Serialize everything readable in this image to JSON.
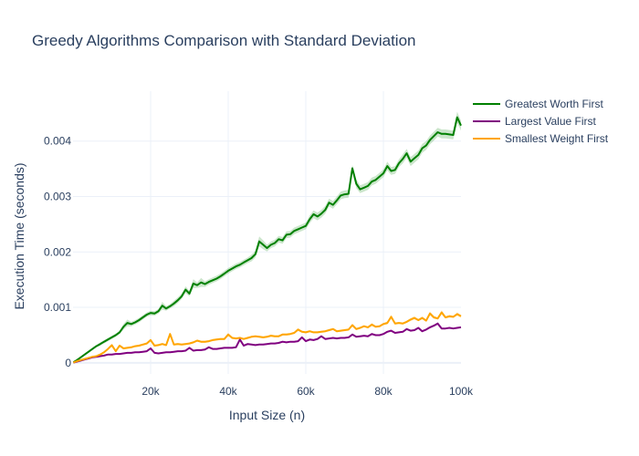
{
  "chart_data": {
    "type": "line",
    "title": "Greedy Algorithms Comparison with Standard Deviation",
    "xlabel": "Input Size (n)",
    "ylabel": "Execution Time (seconds)",
    "xlim": [
      0,
      100000
    ],
    "ylim": [
      -0.0002,
      0.0049
    ],
    "xticks": [
      20000,
      40000,
      60000,
      80000,
      100000
    ],
    "xtick_labels": [
      "20k",
      "40k",
      "60k",
      "80k",
      "100k"
    ],
    "yticks": [
      0,
      0.001,
      0.002,
      0.003,
      0.004
    ],
    "ytick_labels": [
      "0",
      "0.001",
      "0.002",
      "0.003",
      "0.004"
    ],
    "grid": true,
    "legend_position": "top-right",
    "x": [
      100,
      1000,
      2000,
      3000,
      4000,
      5000,
      6000,
      7000,
      8000,
      9000,
      10000,
      11000,
      12000,
      13000,
      14000,
      15000,
      16000,
      17000,
      18000,
      19000,
      20000,
      21000,
      22000,
      23000,
      24000,
      25000,
      26000,
      27000,
      28000,
      29000,
      30000,
      31000,
      32000,
      33000,
      34000,
      35000,
      36000,
      37000,
      38000,
      39000,
      40000,
      41000,
      42000,
      43000,
      44000,
      45000,
      46000,
      47000,
      48000,
      49000,
      50000,
      51000,
      52000,
      53000,
      54000,
      55000,
      56000,
      57000,
      58000,
      59000,
      60000,
      61000,
      62000,
      63000,
      64000,
      65000,
      66000,
      67000,
      68000,
      69000,
      70000,
      71000,
      72000,
      73000,
      74000,
      75000,
      76000,
      77000,
      78000,
      79000,
      80000,
      81000,
      82000,
      83000,
      84000,
      85000,
      86000,
      87000,
      88000,
      89000,
      90000,
      91000,
      92000,
      93000,
      94000,
      95000,
      96000,
      97000,
      98000,
      99000,
      100000
    ],
    "series": [
      {
        "name": "Greatest Worth First",
        "color": "#008000",
        "band_color": "rgba(0,128,0,0.2)",
        "values": [
          1e-05,
          5e-05,
          0.0001,
          0.00015,
          0.0002,
          0.00025,
          0.0003,
          0.00034,
          0.00038,
          0.00042,
          0.00046,
          0.0005,
          0.00055,
          0.00065,
          0.00072,
          0.0007,
          0.00073,
          0.00077,
          0.00082,
          0.00087,
          0.0009,
          0.00089,
          0.00093,
          0.00103,
          0.00098,
          0.00102,
          0.00107,
          0.00113,
          0.0012,
          0.00132,
          0.00125,
          0.00143,
          0.0014,
          0.00145,
          0.00142,
          0.00146,
          0.00149,
          0.00152,
          0.00156,
          0.00161,
          0.00166,
          0.0017,
          0.00174,
          0.00177,
          0.00181,
          0.00185,
          0.00189,
          0.00196,
          0.00219,
          0.00213,
          0.00207,
          0.00213,
          0.00216,
          0.00223,
          0.00221,
          0.00231,
          0.00232,
          0.00238,
          0.00241,
          0.00244,
          0.00247,
          0.00259,
          0.00268,
          0.00264,
          0.00269,
          0.00276,
          0.00289,
          0.00285,
          0.00293,
          0.00302,
          0.00304,
          0.00305,
          0.00351,
          0.00323,
          0.00313,
          0.00316,
          0.00319,
          0.00327,
          0.0033,
          0.00336,
          0.00342,
          0.00355,
          0.00346,
          0.00348,
          0.0036,
          0.00368,
          0.00378,
          0.00363,
          0.00369,
          0.00375,
          0.00387,
          0.00392,
          0.00402,
          0.00409,
          0.00416,
          0.00413,
          0.00413,
          0.00412,
          0.00411,
          0.00443,
          0.00428
        ],
        "std": [
          1e-05,
          1e-05,
          1e-05,
          2e-05,
          2e-05,
          2e-05,
          2e-05,
          3e-05,
          3e-05,
          3e-05,
          3e-05,
          3e-05,
          3e-05,
          5e-05,
          6e-05,
          4e-05,
          4e-05,
          4e-05,
          4e-05,
          4e-05,
          4e-05,
          4e-05,
          4e-05,
          7e-05,
          4e-05,
          4e-05,
          5e-05,
          5e-05,
          5e-05,
          6e-05,
          5e-05,
          8e-05,
          5e-05,
          8e-05,
          5e-05,
          5e-05,
          5e-05,
          5e-05,
          5e-05,
          5e-05,
          5e-05,
          5e-05,
          5e-05,
          5e-05,
          5e-05,
          5e-05,
          6e-05,
          6e-05,
          9e-05,
          8e-05,
          6e-05,
          6e-05,
          6e-05,
          6e-05,
          6e-05,
          6e-05,
          6e-05,
          6e-05,
          6e-05,
          6e-05,
          6e-05,
          7e-05,
          7e-05,
          7e-05,
          7e-05,
          7e-05,
          7e-05,
          7e-05,
          7e-05,
          7e-05,
          7e-05,
          7e-05,
          6e-05,
          8e-05,
          7e-05,
          7e-05,
          7e-05,
          7e-05,
          7e-05,
          7e-05,
          7e-05,
          8e-05,
          7e-05,
          7e-05,
          7e-05,
          8e-05,
          8e-05,
          8e-05,
          8e-05,
          8e-05,
          8e-05,
          8e-05,
          8e-05,
          8e-05,
          8e-05,
          8e-05,
          8e-05,
          8e-05,
          8e-05,
          0.0001,
          9e-05
        ]
      },
      {
        "name": "Largest Value First",
        "color": "#800080",
        "band_color": "rgba(128,0,128,0.15)",
        "values": [
          3e-06,
          2e-05,
          4e-05,
          6e-05,
          8e-05,
          0.0001,
          0.00011,
          0.00012,
          0.00013,
          0.00015,
          0.00015,
          0.00016,
          0.00016,
          0.00017,
          0.00018,
          0.00018,
          0.00019,
          0.00019,
          0.0002,
          0.00021,
          0.00026,
          0.00018,
          0.00017,
          0.00018,
          0.00019,
          0.00019,
          0.0002,
          0.00021,
          0.00021,
          0.00022,
          0.00027,
          0.00022,
          0.00023,
          0.00023,
          0.00024,
          0.00028,
          0.00025,
          0.00025,
          0.00026,
          0.00027,
          0.00027,
          0.00027,
          0.00028,
          0.00042,
          0.00031,
          0.00034,
          0.00033,
          0.00032,
          0.00033,
          0.00033,
          0.00034,
          0.00035,
          0.00035,
          0.00036,
          0.00038,
          0.00037,
          0.00038,
          0.00038,
          0.00039,
          0.00046,
          0.00039,
          0.00042,
          0.00041,
          0.00043,
          0.00048,
          0.00043,
          0.00044,
          0.00045,
          0.00044,
          0.00045,
          0.00045,
          0.00046,
          0.00051,
          0.00047,
          0.00048,
          0.00049,
          0.00048,
          0.00052,
          0.0005,
          0.0005,
          0.00052,
          0.00056,
          0.00058,
          0.00054,
          0.00055,
          0.00056,
          0.00061,
          0.00058,
          0.00059,
          0.00063,
          0.00057,
          0.0006,
          0.00064,
          0.00067,
          0.00071,
          0.00062,
          0.00062,
          0.00063,
          0.00062,
          0.00063,
          0.00064
        ],
        "std": [
          5e-06,
          1e-05,
          1e-05,
          1e-05,
          1e-05,
          1e-05,
          1e-05,
          1e-05,
          1e-05,
          1e-05,
          1e-05,
          1e-05,
          1e-05,
          1e-05,
          1e-05,
          1e-05,
          1e-05,
          1e-05,
          1e-05,
          1e-05,
          2e-05,
          1e-05,
          1e-05,
          1e-05,
          1e-05,
          1e-05,
          1e-05,
          1e-05,
          1e-05,
          1e-05,
          2e-05,
          1e-05,
          1e-05,
          1e-05,
          1e-05,
          2e-05,
          1e-05,
          1e-05,
          1e-05,
          1e-05,
          1e-05,
          1e-05,
          1e-05,
          2e-05,
          2e-05,
          2e-05,
          1e-05,
          1e-05,
          1e-05,
          1e-05,
          1e-05,
          1e-05,
          1e-05,
          1e-05,
          2e-05,
          1e-05,
          1e-05,
          1e-05,
          1e-05,
          2e-05,
          1e-05,
          2e-05,
          1e-05,
          2e-05,
          2e-05,
          1e-05,
          1e-05,
          1e-05,
          1e-05,
          1e-05,
          1e-05,
          1e-05,
          2e-05,
          1e-05,
          1e-05,
          1e-05,
          1e-05,
          2e-05,
          1e-05,
          1e-05,
          1e-05,
          2e-05,
          2e-05,
          1e-05,
          1e-05,
          1e-05,
          2e-05,
          1e-05,
          1e-05,
          2e-05,
          1e-05,
          1e-05,
          2e-05,
          2e-05,
          2e-05,
          1e-05,
          1e-05,
          1e-05,
          1e-05,
          1e-05,
          1e-05
        ]
      },
      {
        "name": "Smallest Weight First",
        "color": "#ffa500",
        "band_color": "rgba(255,165,0,0.2)",
        "values": [
          4e-06,
          3e-05,
          5e-05,
          7e-05,
          9e-05,
          0.00011,
          0.00012,
          0.00015,
          0.00019,
          0.00025,
          0.00032,
          0.00021,
          0.00031,
          0.00026,
          0.00027,
          0.00028,
          0.0003,
          0.00031,
          0.00033,
          0.00035,
          0.00041,
          0.00031,
          0.00032,
          0.00034,
          0.00032,
          0.00052,
          0.00033,
          0.00034,
          0.00033,
          0.00034,
          0.00035,
          0.00037,
          0.0004,
          0.00038,
          0.00038,
          0.00039,
          0.00041,
          0.00042,
          0.00043,
          0.00043,
          0.00051,
          0.00045,
          0.00044,
          0.00045,
          0.00043,
          0.00045,
          0.00047,
          0.00048,
          0.00047,
          0.00046,
          0.00047,
          0.00049,
          0.00048,
          0.00048,
          0.00051,
          0.00051,
          0.00052,
          0.00054,
          0.0006,
          0.00056,
          0.00055,
          0.00057,
          0.00055,
          0.00055,
          0.00056,
          0.00057,
          0.00059,
          0.00061,
          0.00057,
          0.00058,
          0.00059,
          0.0006,
          0.00068,
          0.00061,
          0.00063,
          0.00066,
          0.00064,
          0.00069,
          0.00065,
          0.00066,
          0.0007,
          0.00072,
          0.00083,
          0.00071,
          0.00072,
          0.00071,
          0.00074,
          0.00078,
          0.00081,
          0.00077,
          0.00081,
          0.00076,
          0.00089,
          0.00082,
          0.0008,
          0.00091,
          0.00082,
          0.00084,
          0.00083,
          0.00088,
          0.00084
        ],
        "std": [
          5e-06,
          1e-05,
          1e-05,
          1e-05,
          1e-05,
          1e-05,
          1e-05,
          1e-05,
          2e-05,
          2e-05,
          2e-05,
          1e-05,
          2e-05,
          2e-05,
          2e-05,
          2e-05,
          2e-05,
          2e-05,
          2e-05,
          2e-05,
          3e-05,
          2e-05,
          2e-05,
          2e-05,
          2e-05,
          3e-05,
          2e-05,
          2e-05,
          2e-05,
          2e-05,
          2e-05,
          2e-05,
          2e-05,
          2e-05,
          2e-05,
          2e-05,
          2e-05,
          2e-05,
          2e-05,
          2e-05,
          3e-05,
          2e-05,
          2e-05,
          2e-05,
          2e-05,
          2e-05,
          2e-05,
          2e-05,
          2e-05,
          2e-05,
          2e-05,
          2e-05,
          2e-05,
          2e-05,
          2e-05,
          2e-05,
          2e-05,
          2e-05,
          3e-05,
          2e-05,
          2e-05,
          2e-05,
          2e-05,
          2e-05,
          2e-05,
          2e-05,
          2e-05,
          2e-05,
          2e-05,
          2e-05,
          2e-05,
          2e-05,
          3e-05,
          2e-05,
          2e-05,
          2e-05,
          2e-05,
          3e-05,
          2e-05,
          2e-05,
          2e-05,
          3e-05,
          4e-05,
          2e-05,
          2e-05,
          2e-05,
          2e-05,
          3e-05,
          3e-05,
          2e-05,
          3e-05,
          2e-05,
          4e-05,
          3e-05,
          2e-05,
          4e-05,
          2e-05,
          3e-05,
          2e-05,
          3e-05,
          3e-05
        ]
      }
    ]
  }
}
